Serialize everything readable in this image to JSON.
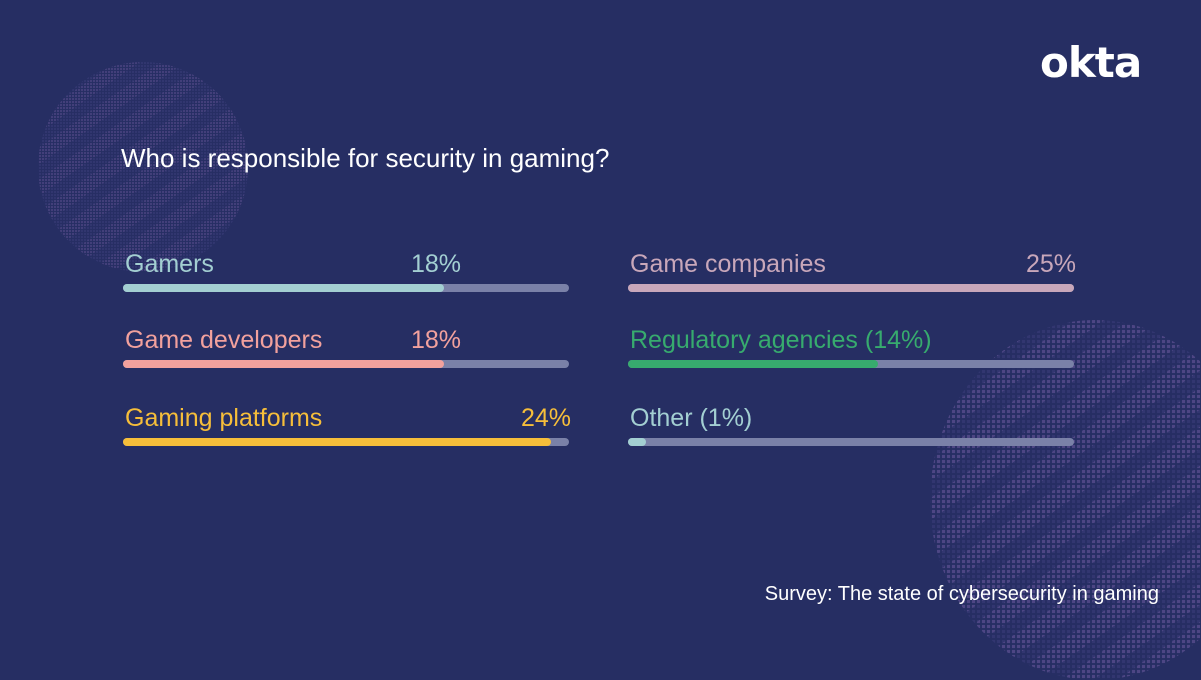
{
  "brand": {
    "logo_text": "okta"
  },
  "footer": {
    "source": "Survey: The state of cybersecurity in gaming"
  },
  "chart_data": {
    "type": "bar",
    "title": "Who is responsible for security in gaming?",
    "orientation": "horizontal",
    "max_value": 25,
    "series": [
      {
        "name": "Gamers",
        "value": 18,
        "pct_label": "18%",
        "label_style": "separate",
        "color": "#a3cfd2"
      },
      {
        "name": "Game developers",
        "value": 18,
        "pct_label": "18%",
        "label_style": "separate",
        "color": "#f2a19d"
      },
      {
        "name": "Gaming platforms",
        "value": 24,
        "pct_label": "24%",
        "label_style": "separate",
        "color": "#f6be3a"
      },
      {
        "name": "Game companies",
        "value": 25,
        "pct_label": "25%",
        "label_style": "separate",
        "color": "#c8a7ba"
      },
      {
        "name": "Regulatory agencies (14%)",
        "value": 14,
        "pct_label": "",
        "label_style": "inline",
        "color": "#37ab6e"
      },
      {
        "name": "Other (1%)",
        "value": 1,
        "pct_label": "",
        "label_style": "inline",
        "color": "#a3cfd2"
      }
    ],
    "track_color": "#7a81a8"
  }
}
